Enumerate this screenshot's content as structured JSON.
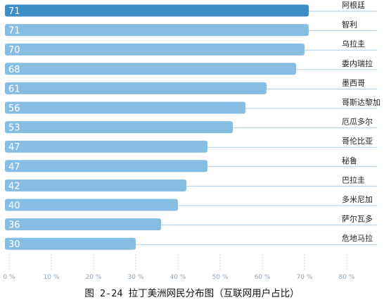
{
  "caption": "图 2-24 拉丁美洲网民分布图（互联网用户占比）",
  "colors": {
    "highlight_bar": "#3b8ec8",
    "bar": "#86bde3",
    "leader_line": "#a9cfe9",
    "axis_tick_text": "#8fa3b5"
  },
  "chart_data": {
    "type": "bar",
    "orientation": "horizontal",
    "title": "",
    "xlabel": "",
    "ylabel": "",
    "xlim": [
      0,
      80
    ],
    "x_ticks": [
      0,
      10,
      20,
      30,
      40,
      50,
      60,
      70,
      80
    ],
    "x_tick_labels": [
      "0 %",
      "10 %",
      "20 %",
      "30 %",
      "40 %",
      "50 %",
      "60 %",
      "70 %",
      "80 %"
    ],
    "grid": false,
    "legend": "none",
    "highlight_index": 0,
    "categories": [
      "阿根廷",
      "智利",
      "乌拉圭",
      "委内瑞拉",
      "墨西哥",
      "哥斯达黎加",
      "厄瓜多尔",
      "哥伦比亚",
      "秘鲁",
      "巴拉圭",
      "多米尼加",
      "萨尔瓦多",
      "危地马拉"
    ],
    "values": [
      71,
      71,
      70,
      68,
      61,
      56,
      53,
      47,
      47,
      42,
      40,
      36,
      30
    ]
  }
}
